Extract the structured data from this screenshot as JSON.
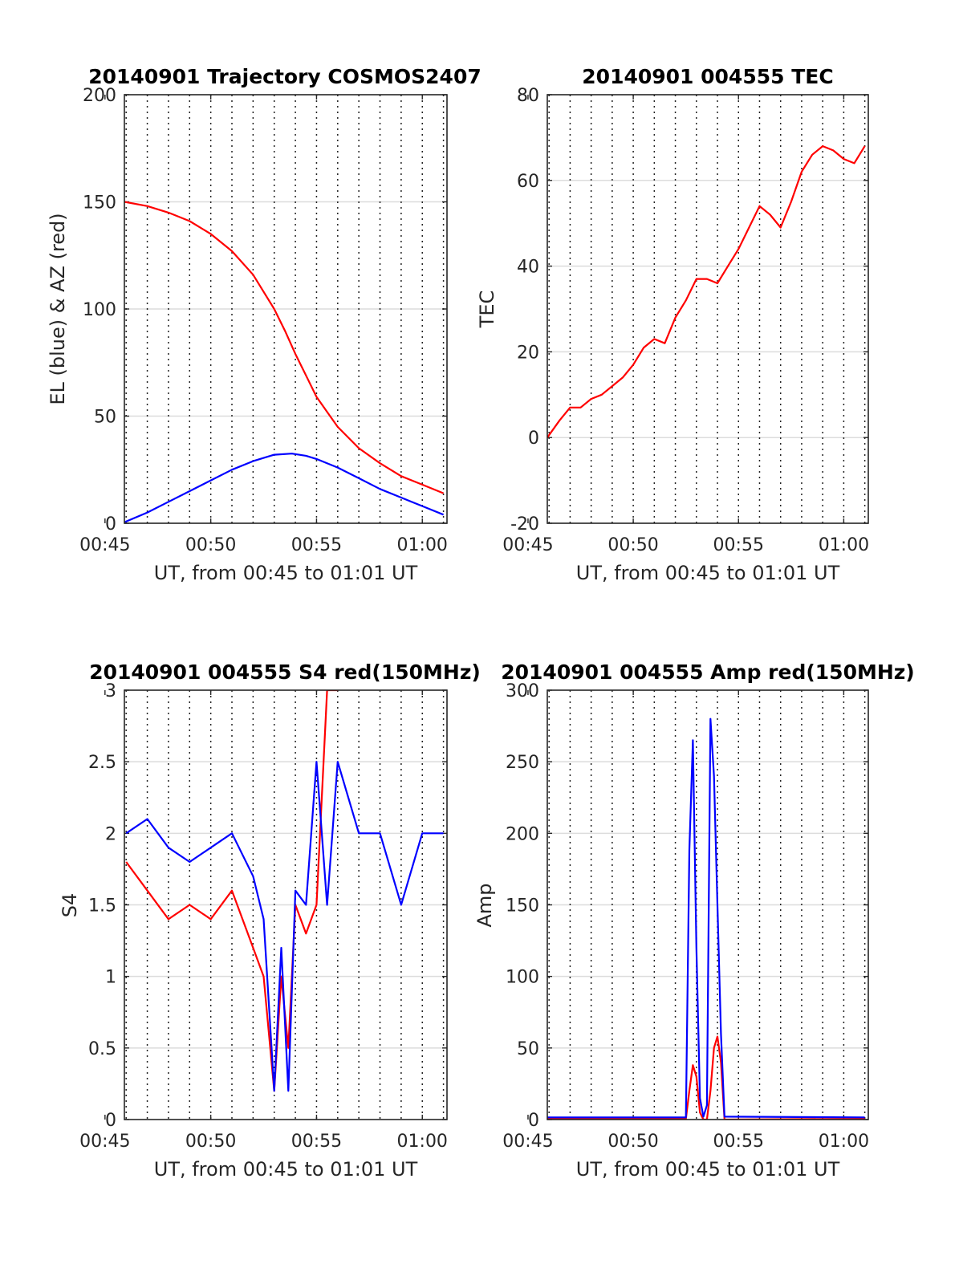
{
  "chart_data": [
    {
      "type": "line",
      "title": "20140901 Trajectory COSMOS2407",
      "xlabel": "UT, from 00:45 to 01:01 UT",
      "ylabel": "EL (blue) & AZ (red)",
      "xlim": [
        "00:45",
        "01:01"
      ],
      "ylim": [
        0,
        200
      ],
      "yticks": [
        "0",
        "50",
        "100",
        "150",
        "200"
      ],
      "xticks": [
        "00:45",
        "00:50",
        "00:55",
        "01:00"
      ],
      "grid": "horizontal solid lines; vertical dotted lines every minute",
      "series": [
        {
          "color": "#ff0000",
          "x": [
            "00:45:55",
            "00:47:00",
            "00:48:00",
            "00:49:00",
            "00:50:00",
            "00:51:00",
            "00:52:00",
            "00:53:00",
            "00:53:30",
            "00:54:00",
            "00:54:30",
            "00:55:00",
            "00:55:30",
            "00:56:00",
            "00:57:00",
            "00:58:00",
            "00:59:00",
            "01:00:00",
            "01:01:00"
          ],
          "values": [
            150,
            148,
            145,
            141,
            135,
            127,
            116,
            100,
            90,
            79,
            69,
            59,
            52,
            45,
            35,
            28,
            22,
            18,
            14
          ]
        },
        {
          "color": "#0000ff",
          "x": [
            "00:45:55",
            "00:47:00",
            "00:48:00",
            "00:49:00",
            "00:50:00",
            "00:51:00",
            "00:52:00",
            "00:53:00",
            "00:53:50",
            "00:54:30",
            "00:55:00",
            "00:56:00",
            "00:57:00",
            "00:58:00",
            "00:59:00",
            "01:00:00",
            "01:01:00"
          ],
          "values": [
            0.5,
            5,
            10,
            15,
            20,
            25,
            29,
            32,
            32.5,
            31.5,
            30,
            26,
            21,
            16,
            12,
            8,
            4
          ]
        }
      ]
    },
    {
      "type": "line",
      "title": "20140901 004555 TEC",
      "xlabel": "UT, from 00:45 to 01:01 UT",
      "ylabel": "TEC",
      "xlim": [
        "00:45",
        "01:01"
      ],
      "ylim": [
        -20,
        80
      ],
      "yticks": [
        "-20",
        "0",
        "20",
        "40",
        "60",
        "80"
      ],
      "xticks": [
        "00:45",
        "00:50",
        "00:55",
        "01:00"
      ],
      "series": [
        {
          "color": "#ff0000",
          "x": [
            "00:45:55",
            "00:46:30",
            "00:47:00",
            "00:47:30",
            "00:48:00",
            "00:48:30",
            "00:49:00",
            "00:49:30",
            "00:50:00",
            "00:50:30",
            "00:51:00",
            "00:51:30",
            "00:52:00",
            "00:52:30",
            "00:53:00",
            "00:53:30",
            "00:54:00",
            "00:54:30",
            "00:55:00",
            "00:55:30",
            "00:56:00",
            "00:56:30",
            "00:57:00",
            "00:57:30",
            "00:58:00",
            "00:58:30",
            "00:59:00",
            "00:59:30",
            "01:00:00",
            "01:00:30",
            "01:01:00"
          ],
          "values": [
            0,
            4,
            7,
            7,
            9,
            10,
            12,
            14,
            17,
            21,
            23,
            22,
            28,
            32,
            37,
            37,
            36,
            40,
            44,
            49,
            54,
            52,
            49,
            55,
            62,
            66,
            68,
            67,
            65,
            64,
            68
          ]
        }
      ]
    },
    {
      "type": "line",
      "title": "20140901 004555 S4 red(150MHz)",
      "xlabel": "UT, from 00:45 to 01:01 UT",
      "ylabel": "S4",
      "xlim": [
        "00:45",
        "01:01"
      ],
      "ylim": [
        0,
        3
      ],
      "yticks": [
        "0",
        "0.5",
        "1",
        "1.5",
        "2",
        "2.5",
        "3"
      ],
      "xticks": [
        "00:45",
        "00:50",
        "00:55",
        "01:00"
      ],
      "series": [
        {
          "color": "#ff0000",
          "x": [
            "00:46:00",
            "00:47:00",
            "00:48:00",
            "00:49:00",
            "00:50:00",
            "00:51:00",
            "00:52:00",
            "00:52:30",
            "00:53:00",
            "00:53:20",
            "00:53:40",
            "00:54:00",
            "00:54:30",
            "00:55:00",
            "00:55:30",
            "00:56:00"
          ],
          "values": [
            1.8,
            1.6,
            1.4,
            1.5,
            1.4,
            1.6,
            1.2,
            1.0,
            0.2,
            1.0,
            0.5,
            1.5,
            1.3,
            1.5,
            3.0,
            3.0
          ]
        },
        {
          "color": "#0000ff",
          "x": [
            "00:46:00",
            "00:47:00",
            "00:48:00",
            "00:49:00",
            "00:50:00",
            "00:51:00",
            "00:52:00",
            "00:52:30",
            "00:53:00",
            "00:53:20",
            "00:53:40",
            "00:54:00",
            "00:54:30",
            "00:55:00",
            "00:55:30",
            "00:56:00",
            "00:57:00",
            "00:58:00",
            "00:59:00",
            "01:00:00",
            "01:01:00"
          ],
          "values": [
            2.0,
            2.1,
            1.9,
            1.8,
            1.9,
            2.0,
            1.7,
            1.4,
            0.2,
            1.2,
            0.2,
            1.6,
            1.5,
            2.5,
            1.5,
            2.5,
            2.0,
            2.0,
            1.5,
            2.0,
            2.0
          ]
        }
      ]
    },
    {
      "type": "line",
      "title": "20140901 004555 Amp red(150MHz)",
      "xlabel": "UT, from 00:45 to 01:01 UT",
      "ylabel": "Amp",
      "xlim": [
        "00:45",
        "01:01"
      ],
      "ylim": [
        0,
        300
      ],
      "yticks": [
        "0",
        "50",
        "100",
        "150",
        "200",
        "250",
        "300"
      ],
      "xticks": [
        "00:45",
        "00:50",
        "00:55",
        "01:00"
      ],
      "series": [
        {
          "color": "#ff0000",
          "x": [
            "00:45:55",
            "00:52:30",
            "00:52:40",
            "00:52:50",
            "00:53:00",
            "00:53:10",
            "00:53:20",
            "00:53:30",
            "00:53:40",
            "00:53:50",
            "00:54:00",
            "00:54:10",
            "00:54:20",
            "01:01:00"
          ],
          "values": [
            0.5,
            0.5,
            20,
            38,
            30,
            5,
            0,
            0,
            20,
            50,
            58,
            40,
            0,
            0.5
          ]
        },
        {
          "color": "#0000ff",
          "x": [
            "00:45:55",
            "00:52:30",
            "00:52:40",
            "00:52:50",
            "00:53:00",
            "00:53:10",
            "00:53:20",
            "00:53:30",
            "00:53:40",
            "00:53:50",
            "00:54:00",
            "00:54:10",
            "00:54:20",
            "01:01:00"
          ],
          "values": [
            1.5,
            1.5,
            188,
            265,
            120,
            15,
            2,
            10,
            280,
            240,
            150,
            60,
            2,
            1.5
          ]
        }
      ]
    }
  ]
}
